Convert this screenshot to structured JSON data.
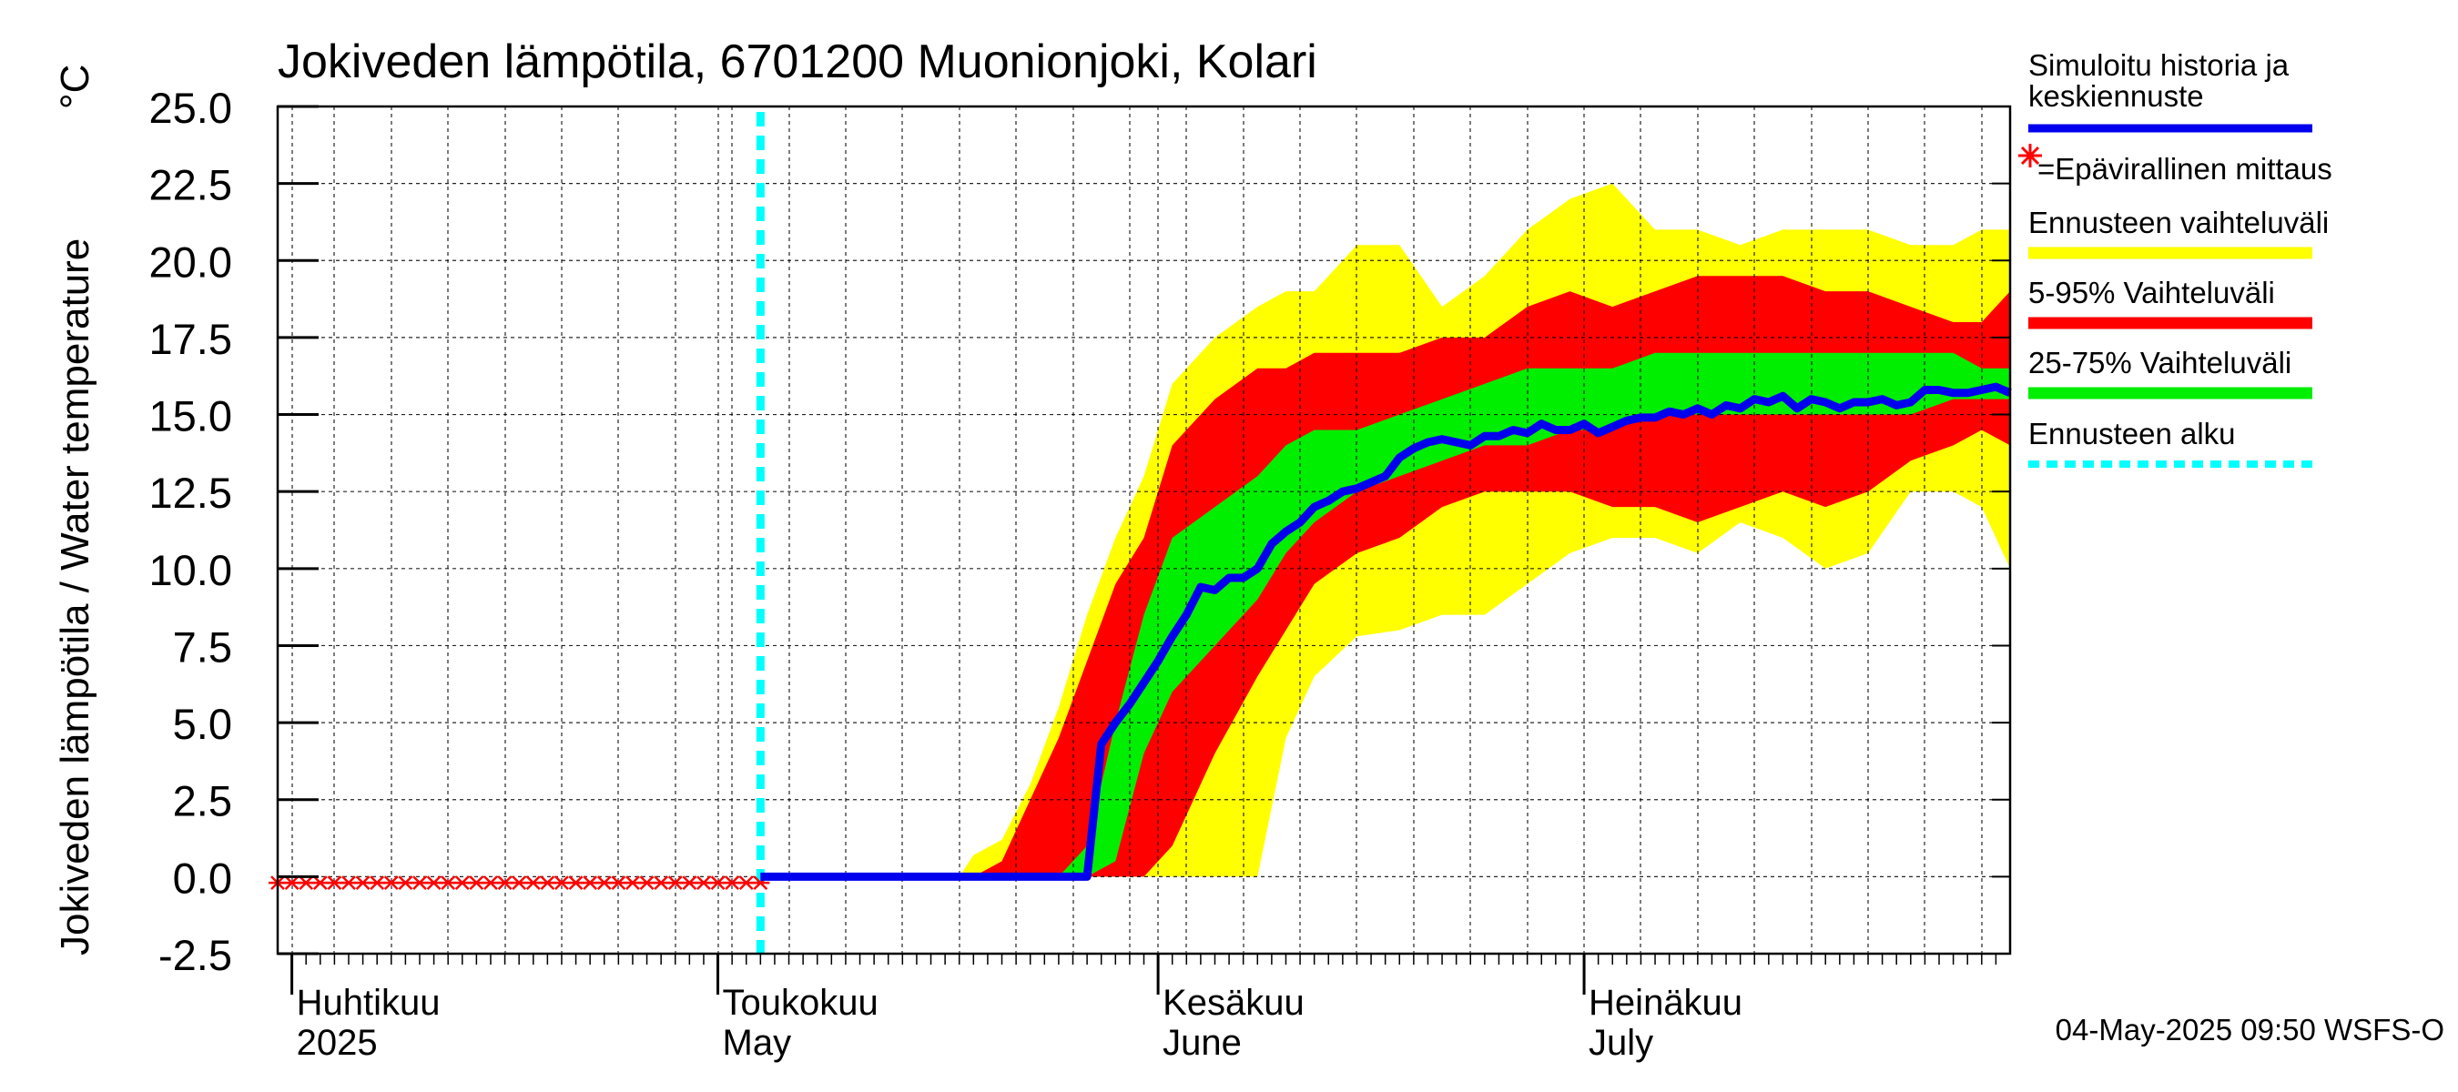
{
  "chart_data": {
    "type": "area",
    "title": "Jokiveden lämpötila, 6701200 Muonionjoki, Kolari",
    "ylabel": "Jokiveden lämpötila / Water temperature",
    "yunit": "°C",
    "ylim": [
      -2.5,
      25.0
    ],
    "yticks": [
      "25.0",
      "22.5",
      "20.0",
      "17.5",
      "15.0",
      "12.5",
      "10.0",
      "7.5",
      "5.0",
      "2.5",
      "0.0",
      "-2.5"
    ],
    "x_start": "2025-03-31",
    "x_end": "2025-07-31",
    "forecast_start": "2025-05-04",
    "months": [
      {
        "date": "2025-04-01",
        "label_fi": "Huhtikuu",
        "label_en": "2025"
      },
      {
        "date": "2025-05-01",
        "label_fi": "Toukokuu",
        "label_en": "May"
      },
      {
        "date": "2025-06-01",
        "label_fi": "Kesäkuu",
        "label_en": "June"
      },
      {
        "date": "2025-07-01",
        "label_fi": "Heinäkuu",
        "label_en": "July"
      }
    ],
    "grid": true,
    "legend_position": "right",
    "timestamp": "04-May-2025 09:50 WSFS-O",
    "colors": {
      "simulated": "#0000ee",
      "observed": "#ff0000",
      "range_full": "#ffff00",
      "range_5_95": "#ff0000",
      "range_25_75": "#00ee00",
      "forecast_start": "#00ffff"
    },
    "legend": [
      {
        "key": "simulated",
        "label1": "Simuloitu historia ja",
        "label2": "keskiennuste"
      },
      {
        "key": "observed",
        "label1": "=Epävirallinen mittaus",
        "label2": ""
      },
      {
        "key": "range_full",
        "label1": "Ennusteen vaihteluväli",
        "label2": ""
      },
      {
        "key": "range_5_95",
        "label1": "5-95% Vaihteluväli",
        "label2": ""
      },
      {
        "key": "range_25_75",
        "label1": "25-75% Vaihteluväli",
        "label2": ""
      },
      {
        "key": "forecast_start",
        "label1": "Ennusteen alku",
        "label2": ""
      }
    ],
    "observed_range": {
      "from": "2025-03-31",
      "to": "2025-05-04",
      "value": -0.2
    },
    "envelope": [
      {
        "date": "2025-05-04",
        "min": 0.0,
        "p5": 0.0,
        "p25": 0.0,
        "p75": 0.0,
        "p95": 0.0,
        "max": 0.0
      },
      {
        "date": "2025-05-18",
        "min": 0.0,
        "p5": 0.0,
        "p25": 0.0,
        "p75": 0.0,
        "p95": 0.0,
        "max": 0.0
      },
      {
        "date": "2025-05-19",
        "min": 0.0,
        "p5": 0.0,
        "p25": 0.0,
        "p75": 0.0,
        "p95": 0.0,
        "max": 0.7
      },
      {
        "date": "2025-05-21",
        "min": 0.0,
        "p5": 0.0,
        "p25": 0.0,
        "p75": 0.0,
        "p95": 0.5,
        "max": 1.2
      },
      {
        "date": "2025-05-23",
        "min": 0.0,
        "p5": 0.0,
        "p25": 0.0,
        "p75": 0.0,
        "p95": 2.5,
        "max": 3.0
      },
      {
        "date": "2025-05-25",
        "min": 0.0,
        "p5": 0.0,
        "p25": 0.0,
        "p75": 0.0,
        "p95": 4.5,
        "max": 5.5
      },
      {
        "date": "2025-05-27",
        "min": 0.0,
        "p5": 0.0,
        "p25": 0.0,
        "p75": 1.0,
        "p95": 7.0,
        "max": 8.5
      },
      {
        "date": "2025-05-29",
        "min": 0.0,
        "p5": 0.0,
        "p25": 0.5,
        "p75": 5.0,
        "p95": 9.5,
        "max": 11.0
      },
      {
        "date": "2025-05-31",
        "min": 0.0,
        "p5": 0.0,
        "p25": 4.0,
        "p75": 8.5,
        "p95": 11.0,
        "max": 13.0
      },
      {
        "date": "2025-06-02",
        "min": 0.0,
        "p5": 1.0,
        "p25": 6.0,
        "p75": 11.0,
        "p95": 14.0,
        "max": 16.0
      },
      {
        "date": "2025-06-05",
        "min": 0.0,
        "p5": 4.0,
        "p25": 7.5,
        "p75": 12.0,
        "p95": 15.5,
        "max": 17.5
      },
      {
        "date": "2025-06-08",
        "min": 0.0,
        "p5": 6.5,
        "p25": 9.0,
        "p75": 13.0,
        "p95": 16.5,
        "max": 18.5
      },
      {
        "date": "2025-06-10",
        "min": 4.5,
        "p5": 8.0,
        "p25": 10.5,
        "p75": 14.0,
        "p95": 16.5,
        "max": 19.0
      },
      {
        "date": "2025-06-12",
        "min": 6.5,
        "p5": 9.5,
        "p25": 11.5,
        "p75": 14.5,
        "p95": 17.0,
        "max": 19.0
      },
      {
        "date": "2025-06-15",
        "min": 7.8,
        "p5": 10.5,
        "p25": 12.5,
        "p75": 14.5,
        "p95": 17.0,
        "max": 20.5
      },
      {
        "date": "2025-06-18",
        "min": 8.0,
        "p5": 11.0,
        "p25": 13.0,
        "p75": 15.0,
        "p95": 17.0,
        "max": 20.5
      },
      {
        "date": "2025-06-21",
        "min": 8.5,
        "p5": 12.0,
        "p25": 13.5,
        "p75": 15.5,
        "p95": 17.5,
        "max": 18.5
      },
      {
        "date": "2025-06-24",
        "min": 8.5,
        "p5": 12.5,
        "p25": 14.0,
        "p75": 16.0,
        "p95": 17.5,
        "max": 19.5
      },
      {
        "date": "2025-06-27",
        "min": 9.5,
        "p5": 12.5,
        "p25": 14.0,
        "p75": 16.5,
        "p95": 18.5,
        "max": 21.0
      },
      {
        "date": "2025-06-30",
        "min": 10.5,
        "p5": 12.5,
        "p25": 14.5,
        "p75": 16.5,
        "p95": 19.0,
        "max": 22.0
      },
      {
        "date": "2025-07-03",
        "min": 11.0,
        "p5": 12.0,
        "p25": 14.5,
        "p75": 16.5,
        "p95": 18.5,
        "max": 22.5
      },
      {
        "date": "2025-07-06",
        "min": 11.0,
        "p5": 12.0,
        "p25": 15.0,
        "p75": 17.0,
        "p95": 19.0,
        "max": 21.0
      },
      {
        "date": "2025-07-09",
        "min": 10.5,
        "p5": 11.5,
        "p25": 15.0,
        "p75": 17.0,
        "p95": 19.5,
        "max": 21.0
      },
      {
        "date": "2025-07-12",
        "min": 11.5,
        "p5": 12.0,
        "p25": 15.0,
        "p75": 17.0,
        "p95": 19.5,
        "max": 20.5
      },
      {
        "date": "2025-07-15",
        "min": 11.0,
        "p5": 12.5,
        "p25": 15.0,
        "p75": 17.0,
        "p95": 19.5,
        "max": 21.0
      },
      {
        "date": "2025-07-18",
        "min": 10.0,
        "p5": 12.0,
        "p25": 15.0,
        "p75": 17.0,
        "p95": 19.0,
        "max": 21.0
      },
      {
        "date": "2025-07-21",
        "min": 10.5,
        "p5": 12.5,
        "p25": 15.0,
        "p75": 17.0,
        "p95": 19.0,
        "max": 21.0
      },
      {
        "date": "2025-07-24",
        "min": 12.5,
        "p5": 13.5,
        "p25": 15.0,
        "p75": 17.0,
        "p95": 18.5,
        "max": 20.5
      },
      {
        "date": "2025-07-27",
        "min": 12.5,
        "p5": 14.0,
        "p25": 15.5,
        "p75": 17.0,
        "p95": 18.0,
        "max": 20.5
      },
      {
        "date": "2025-07-29",
        "min": 12.0,
        "p5": 14.5,
        "p25": 15.5,
        "p75": 16.5,
        "p95": 18.0,
        "max": 21.0
      },
      {
        "date": "2025-07-31",
        "min": 10.0,
        "p5": 14.0,
        "p25": 15.5,
        "p75": 16.5,
        "p95": 19.0,
        "max": 21.0
      }
    ],
    "series": [
      {
        "name": "Simuloitu historia ja keskiennuste",
        "points": [
          {
            "date": "2025-05-04",
            "value": 0.0
          },
          {
            "date": "2025-05-27",
            "value": 0.0
          },
          {
            "date": "2025-05-28",
            "value": 4.3
          },
          {
            "date": "2025-05-29",
            "value": 5.0
          },
          {
            "date": "2025-05-30",
            "value": 5.6
          },
          {
            "date": "2025-05-31",
            "value": 6.3
          },
          {
            "date": "2025-06-01",
            "value": 7.0
          },
          {
            "date": "2025-06-02",
            "value": 7.8
          },
          {
            "date": "2025-06-03",
            "value": 8.5
          },
          {
            "date": "2025-06-04",
            "value": 9.4
          },
          {
            "date": "2025-06-05",
            "value": 9.3
          },
          {
            "date": "2025-06-06",
            "value": 9.7
          },
          {
            "date": "2025-06-07",
            "value": 9.7
          },
          {
            "date": "2025-06-08",
            "value": 10.0
          },
          {
            "date": "2025-06-09",
            "value": 10.8
          },
          {
            "date": "2025-06-10",
            "value": 11.2
          },
          {
            "date": "2025-06-11",
            "value": 11.5
          },
          {
            "date": "2025-06-12",
            "value": 12.0
          },
          {
            "date": "2025-06-13",
            "value": 12.2
          },
          {
            "date": "2025-06-14",
            "value": 12.5
          },
          {
            "date": "2025-06-15",
            "value": 12.6
          },
          {
            "date": "2025-06-16",
            "value": 12.8
          },
          {
            "date": "2025-06-17",
            "value": 13.0
          },
          {
            "date": "2025-06-18",
            "value": 13.6
          },
          {
            "date": "2025-06-19",
            "value": 13.9
          },
          {
            "date": "2025-06-20",
            "value": 14.1
          },
          {
            "date": "2025-06-21",
            "value": 14.2
          },
          {
            "date": "2025-06-22",
            "value": 14.1
          },
          {
            "date": "2025-06-23",
            "value": 14.0
          },
          {
            "date": "2025-06-24",
            "value": 14.3
          },
          {
            "date": "2025-06-25",
            "value": 14.3
          },
          {
            "date": "2025-06-26",
            "value": 14.5
          },
          {
            "date": "2025-06-27",
            "value": 14.4
          },
          {
            "date": "2025-06-28",
            "value": 14.7
          },
          {
            "date": "2025-06-29",
            "value": 14.5
          },
          {
            "date": "2025-06-30",
            "value": 14.5
          },
          {
            "date": "2025-07-01",
            "value": 14.7
          },
          {
            "date": "2025-07-02",
            "value": 14.4
          },
          {
            "date": "2025-07-03",
            "value": 14.6
          },
          {
            "date": "2025-07-04",
            "value": 14.8
          },
          {
            "date": "2025-07-05",
            "value": 14.9
          },
          {
            "date": "2025-07-06",
            "value": 14.9
          },
          {
            "date": "2025-07-07",
            "value": 15.1
          },
          {
            "date": "2025-07-08",
            "value": 15.0
          },
          {
            "date": "2025-07-09",
            "value": 15.2
          },
          {
            "date": "2025-07-10",
            "value": 15.0
          },
          {
            "date": "2025-07-11",
            "value": 15.3
          },
          {
            "date": "2025-07-12",
            "value": 15.2
          },
          {
            "date": "2025-07-13",
            "value": 15.5
          },
          {
            "date": "2025-07-14",
            "value": 15.4
          },
          {
            "date": "2025-07-15",
            "value": 15.6
          },
          {
            "date": "2025-07-16",
            "value": 15.2
          },
          {
            "date": "2025-07-17",
            "value": 15.5
          },
          {
            "date": "2025-07-18",
            "value": 15.4
          },
          {
            "date": "2025-07-19",
            "value": 15.2
          },
          {
            "date": "2025-07-20",
            "value": 15.4
          },
          {
            "date": "2025-07-21",
            "value": 15.4
          },
          {
            "date": "2025-07-22",
            "value": 15.5
          },
          {
            "date": "2025-07-23",
            "value": 15.3
          },
          {
            "date": "2025-07-24",
            "value": 15.4
          },
          {
            "date": "2025-07-25",
            "value": 15.8
          },
          {
            "date": "2025-07-26",
            "value": 15.8
          },
          {
            "date": "2025-07-27",
            "value": 15.7
          },
          {
            "date": "2025-07-28",
            "value": 15.7
          },
          {
            "date": "2025-07-29",
            "value": 15.8
          },
          {
            "date": "2025-07-30",
            "value": 15.9
          },
          {
            "date": "2025-07-31",
            "value": 15.7
          }
        ]
      }
    ]
  }
}
